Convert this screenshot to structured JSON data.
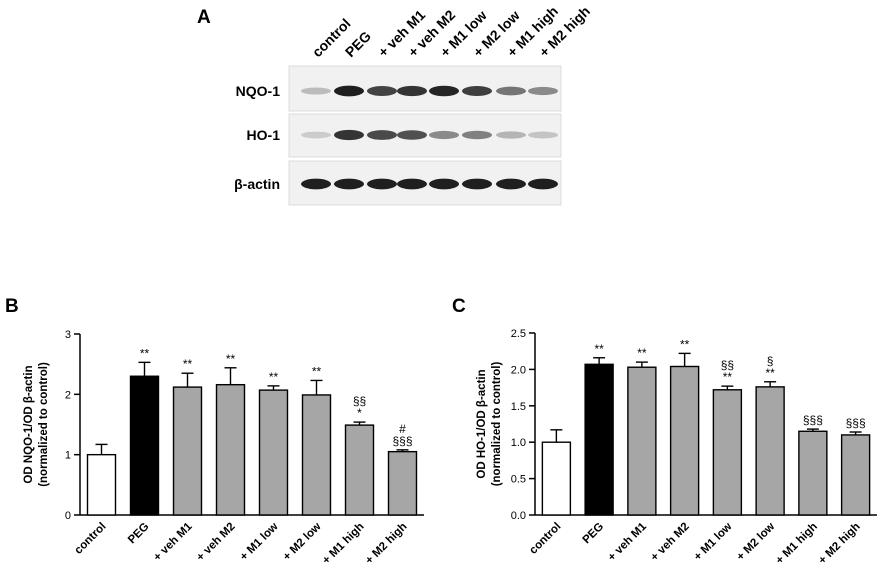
{
  "blot": {
    "panel_letter": "A",
    "lanes": [
      "control",
      "PEG",
      "+ veh M1",
      "+ veh M2",
      "+ M1 low",
      "+ M2 low",
      "+ M1 high",
      "+ M2 high"
    ],
    "rows": [
      {
        "label": "NQO-1",
        "intensity": [
          0.22,
          0.95,
          0.78,
          0.85,
          0.92,
          0.8,
          0.55,
          0.45
        ]
      },
      {
        "label": "HO-1",
        "intensity": [
          0.15,
          0.85,
          0.75,
          0.72,
          0.45,
          0.5,
          0.25,
          0.18
        ]
      },
      {
        "label": "β-actin",
        "intensity": [
          0.95,
          0.95,
          0.95,
          0.95,
          0.95,
          0.95,
          0.95,
          0.95
        ]
      }
    ]
  },
  "chart_data": [
    {
      "type": "bar",
      "panel_letter": "B",
      "categories": [
        "control",
        "PEG",
        "+ veh M1",
        "+ veh M2",
        "+ M1 low",
        "+ M2 low",
        "+ M1 high",
        "+ M2 high"
      ],
      "values": [
        1.0,
        2.3,
        2.12,
        2.16,
        2.07,
        1.99,
        1.49,
        1.05
      ],
      "errors": [
        0.17,
        0.23,
        0.23,
        0.28,
        0.07,
        0.24,
        0.05,
        0.03
      ],
      "ylabel_line1": "OD NQO-1/OD β-actin",
      "ylabel_line2": "(normalized to control)",
      "ylim": [
        0,
        3
      ],
      "yticks": [
        "0",
        "1",
        "2",
        "3"
      ],
      "bar_colors": [
        "#ffffff",
        "#000000",
        "#a6a6a6",
        "#a6a6a6",
        "#a6a6a6",
        "#a6a6a6",
        "#a6a6a6",
        "#a6a6a6"
      ],
      "annotations": [
        [],
        [
          "**"
        ],
        [
          "**"
        ],
        [
          "**"
        ],
        [
          "**"
        ],
        [
          "**"
        ],
        [
          "*",
          "§§"
        ],
        [
          "§§§",
          "#"
        ]
      ]
    },
    {
      "type": "bar",
      "panel_letter": "C",
      "categories": [
        "control",
        "PEG",
        "+ veh M1",
        "+ veh M2",
        "+ M1 low",
        "+ M2 low",
        "+ M1 high",
        "+ M2 high"
      ],
      "values": [
        1.0,
        2.07,
        2.03,
        2.04,
        1.72,
        1.76,
        1.15,
        1.1
      ],
      "errors": [
        0.17,
        0.09,
        0.07,
        0.18,
        0.05,
        0.07,
        0.03,
        0.04
      ],
      "ylabel_line1": "OD HO-1/OD β-actin",
      "ylabel_line2": "(normalized to control)",
      "ylim": [
        0,
        2.5
      ],
      "yticks": [
        "0.0",
        "0.5",
        "1.0",
        "1.5",
        "2.0",
        "2.5"
      ],
      "bar_colors": [
        "#ffffff",
        "#000000",
        "#a6a6a6",
        "#a6a6a6",
        "#a6a6a6",
        "#a6a6a6",
        "#a6a6a6",
        "#a6a6a6"
      ],
      "annotations": [
        [],
        [
          "**"
        ],
        [
          "**"
        ],
        [
          "**"
        ],
        [
          "**",
          "§§"
        ],
        [
          "**",
          "§"
        ],
        [
          "§§§"
        ],
        [
          "§§§"
        ]
      ]
    }
  ]
}
